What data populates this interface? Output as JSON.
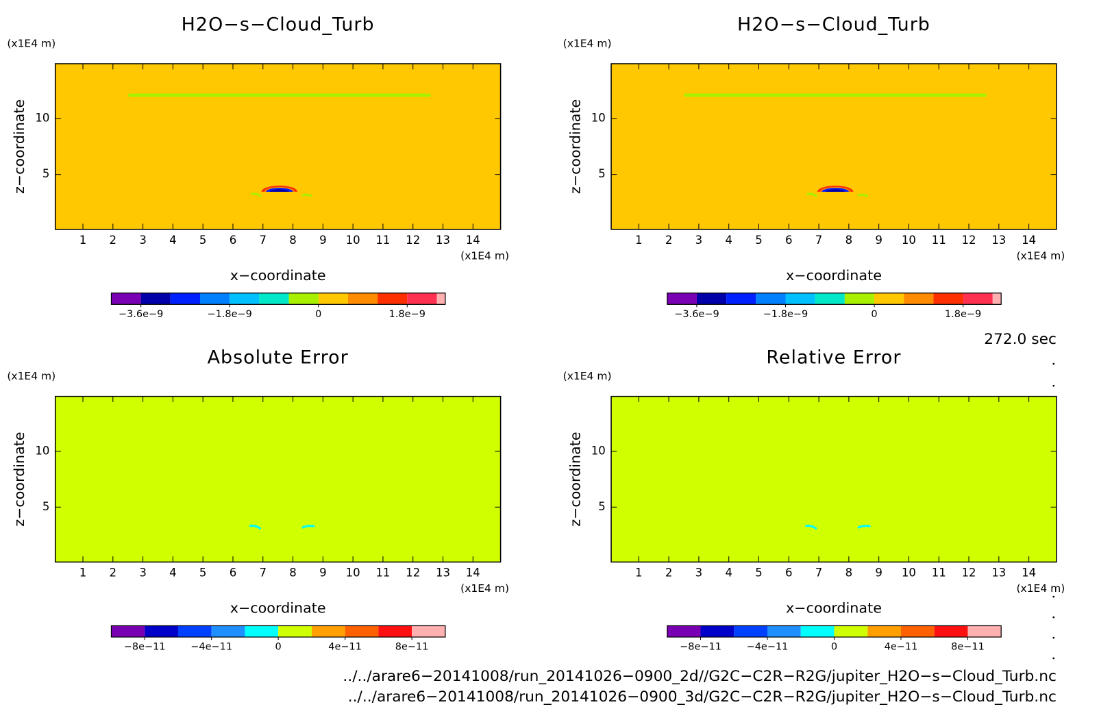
{
  "chart_data": [
    {
      "type": "contour",
      "title": "H2O−s−Cloud_Turb",
      "xlabel": "x−coordinate",
      "ylabel": "z−coordinate",
      "x_unit": "(x1E4 m)",
      "y_unit": "(x1E4 m)",
      "xlim": [
        0.08,
        14.92
      ],
      "ylim": [
        0.08,
        14.92
      ],
      "xticks": [
        1,
        2,
        3,
        4,
        5,
        6,
        7,
        8,
        9,
        10,
        11,
        12,
        13,
        14
      ],
      "yticks": [
        5,
        10
      ],
      "colorbar": {
        "boundaries": [
          -4.2e-09,
          -3.6e-09,
          -3e-09,
          -2.4e-09,
          -1.8e-09,
          -1.2e-09,
          -6e-10,
          0,
          6e-10,
          1.2e-09,
          1.8e-09,
          2.4e-09
        ],
        "colors": [
          "#7a00b4",
          "#0000a8",
          "#0020ff",
          "#0080ff",
          "#00c0ff",
          "#00e8c8",
          "#a8f000",
          "#ffc800",
          "#ff8c00",
          "#ff3000",
          "#ff3050"
        ],
        "over_color": "#ffb0b0",
        "ticks": [
          {
            "value": -3.6e-09,
            "label": "−3.6e−9"
          },
          {
            "value": -1.8e-09,
            "label": "−1.8e−9"
          },
          0,
          {
            "value": 1.8e-09,
            "label": "1.8e−9"
          }
        ]
      }
    },
    {
      "type": "contour",
      "title": "H2O−s−Cloud_Turb",
      "xlabel": "x−coordinate",
      "ylabel": "z−coordinate",
      "x_unit": "(x1E4 m)",
      "y_unit": "(x1E4 m)",
      "xlim": [
        0.08,
        14.92
      ],
      "ylim": [
        0.08,
        14.92
      ],
      "xticks": [
        1,
        2,
        3,
        4,
        5,
        6,
        7,
        8,
        9,
        10,
        11,
        12,
        13,
        14
      ],
      "yticks": [
        5,
        10
      ],
      "colorbar": {
        "boundaries": [
          -4.2e-09,
          -3.6e-09,
          -3e-09,
          -2.4e-09,
          -1.8e-09,
          -1.2e-09,
          -6e-10,
          0,
          6e-10,
          1.2e-09,
          1.8e-09,
          2.4e-09
        ],
        "colors": [
          "#7a00b4",
          "#0000a8",
          "#0020ff",
          "#0080ff",
          "#00c0ff",
          "#00e8c8",
          "#a8f000",
          "#ffc800",
          "#ff8c00",
          "#ff3000",
          "#ff3050"
        ],
        "over_color": "#ffb0b0",
        "ticks": [
          {
            "value": -3.6e-09,
            "label": "−3.6e−9"
          },
          {
            "value": -1.8e-09,
            "label": "−1.8e−9"
          },
          0,
          {
            "value": 1.8e-09,
            "label": "1.8e−9"
          }
        ]
      }
    },
    {
      "type": "contour",
      "title": "Absolute Error",
      "xlabel": "x−coordinate",
      "ylabel": "z−coordinate",
      "x_unit": "(x1E4 m)",
      "y_unit": "(x1E4 m)",
      "xlim": [
        0.08,
        14.92
      ],
      "ylim": [
        0.08,
        14.92
      ],
      "xticks": [
        1,
        2,
        3,
        4,
        5,
        6,
        7,
        8,
        9,
        10,
        11,
        12,
        13,
        14
      ],
      "yticks": [
        5,
        10
      ],
      "colorbar": {
        "boundaries": [
          -1e-10,
          -8e-11,
          -6e-11,
          -4e-11,
          -2e-11,
          0,
          2e-11,
          4e-11,
          6e-11,
          8e-11,
          1e-10
        ],
        "colors": [
          "#7a00b4",
          "#0000c8",
          "#0040ff",
          "#1e90ff",
          "#00ffff",
          "#d0ff00",
          "#ffa000",
          "#ff6000",
          "#ff1010",
          "#ffb0b0"
        ],
        "ticks": [
          {
            "value": -8e-11,
            "label": "−8e−11"
          },
          {
            "value": -4e-11,
            "label": "−4e−11"
          },
          0,
          {
            "value": 4e-11,
            "label": "4e−11"
          },
          {
            "value": 8e-11,
            "label": "8e−11"
          }
        ]
      }
    },
    {
      "type": "contour",
      "title": "Relative Error",
      "xlabel": "x−coordinate",
      "ylabel": "z−coordinate",
      "x_unit": "(x1E4 m)",
      "y_unit": "(x1E4 m)",
      "xlim": [
        0.08,
        14.92
      ],
      "ylim": [
        0.08,
        14.92
      ],
      "xticks": [
        1,
        2,
        3,
        4,
        5,
        6,
        7,
        8,
        9,
        10,
        11,
        12,
        13,
        14
      ],
      "yticks": [
        5,
        10
      ],
      "colorbar": {
        "boundaries": [
          -1e-10,
          -8e-11,
          -6e-11,
          -4e-11,
          -2e-11,
          0,
          2e-11,
          4e-11,
          6e-11,
          8e-11,
          1e-10
        ],
        "colors": [
          "#7a00b4",
          "#0000c8",
          "#0040ff",
          "#1e90ff",
          "#00ffff",
          "#d0ff00",
          "#ffa000",
          "#ff6000",
          "#ff1010",
          "#ffb0b0"
        ],
        "ticks": [
          {
            "value": -8e-11,
            "label": "−8e−11"
          },
          {
            "value": -4e-11,
            "label": "−4e−11"
          },
          0,
          {
            "value": 4e-11,
            "label": "4e−11"
          },
          {
            "value": 8e-11,
            "label": "8e−11"
          }
        ]
      }
    }
  ],
  "footer": {
    "time": "272.0 sec",
    "files": [
      "../../arare6−20141008/run_20141026−0900_2d//G2C−C2R−R2G/jupiter_H2O−s−Cloud_Turb.nc",
      "../../arare6−20141008/run_20141026−0900_3d/G2C−C2R−R2G/jupiter_H2O−s−Cloud_Turb.nc"
    ]
  }
}
